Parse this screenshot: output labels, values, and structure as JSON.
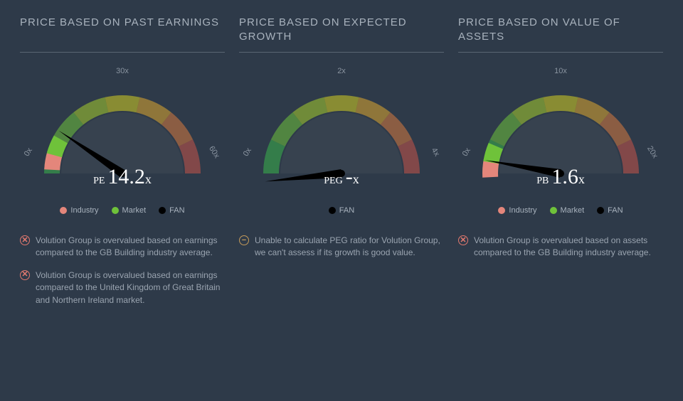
{
  "background_color": "#2e3a49",
  "text_color": "#a8b2bd",
  "divider_color": "#5a6572",
  "arc_colors": [
    "#3ab54a",
    "#6fc23a",
    "#a8ce2c",
    "#d6d020",
    "#e0a82e",
    "#d87a3e",
    "#c95449"
  ],
  "needle_color": "#000000",
  "legend_colors": {
    "industry": "#e4867b",
    "market": "#6fc23a",
    "fan": "#000000"
  },
  "legend_labels": {
    "industry": "Industry",
    "market": "Market",
    "fan": "FAN"
  },
  "panels": [
    {
      "title": "PRICE BASED ON PAST EARNINGS",
      "metric_label": "PE",
      "metric_value": "14.2",
      "metric_suffix": "x",
      "ticks": {
        "left": "0x",
        "top": "30x",
        "right": "60x"
      },
      "needle_angle_deg": -56,
      "markers": [
        {
          "kind": "industry",
          "angle_deg": -80
        },
        {
          "kind": "market",
          "angle_deg": -68
        }
      ],
      "show_legend": [
        "industry",
        "market",
        "fan"
      ],
      "notes": [
        {
          "icon": "bad",
          "glyph": "✕",
          "text": "Volution Group is overvalued based on earnings compared to the GB Building industry average."
        },
        {
          "icon": "bad",
          "glyph": "✕",
          "text": "Volution Group is overvalued based on earnings compared to the United Kingdom of Great Britain and Northern Ireland market."
        }
      ]
    },
    {
      "title": "PRICE BASED ON EXPECTED GROWTH",
      "metric_label": "PEG",
      "metric_value": "-",
      "metric_suffix": "x",
      "ticks": {
        "left": "0x",
        "top": "2x",
        "right": "4x"
      },
      "needle_angle_deg": -96,
      "markers": [],
      "show_legend": [
        "fan"
      ],
      "notes": [
        {
          "icon": "neutral",
          "glyph": "−",
          "text": "Unable to calculate PEG ratio for Volution Group, we can't assess if its growth is good value."
        }
      ]
    },
    {
      "title": "PRICE BASED ON VALUE OF ASSETS",
      "metric_label": "PB",
      "metric_value": "1.6",
      "metric_suffix": "x",
      "ticks": {
        "left": "0x",
        "top": "10x",
        "right": "20x"
      },
      "needle_angle_deg": -80,
      "markers": [
        {
          "kind": "industry",
          "angle_deg": -86
        },
        {
          "kind": "market",
          "angle_deg": -74
        }
      ],
      "show_legend": [
        "industry",
        "market",
        "fan"
      ],
      "notes": [
        {
          "icon": "bad",
          "glyph": "✕",
          "text": "Volution Group is overvalued based on assets compared to the GB Building industry average."
        }
      ]
    }
  ]
}
